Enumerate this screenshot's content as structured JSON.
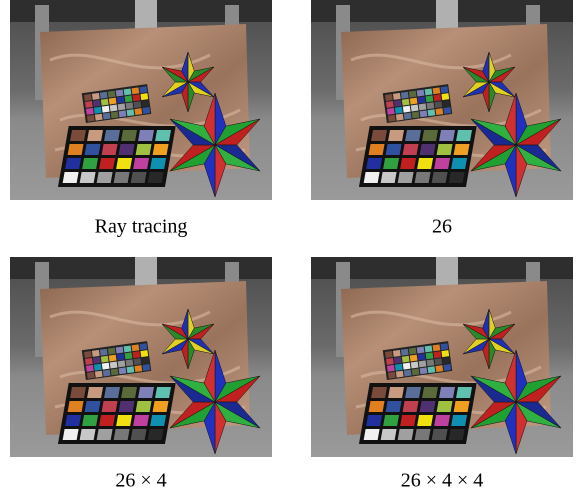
{
  "figure": {
    "panels": [
      {
        "caption": "Ray tracing"
      },
      {
        "caption": "26"
      },
      {
        "caption": "26 × 4"
      },
      {
        "caption": "26 × 4 × 4"
      }
    ]
  }
}
